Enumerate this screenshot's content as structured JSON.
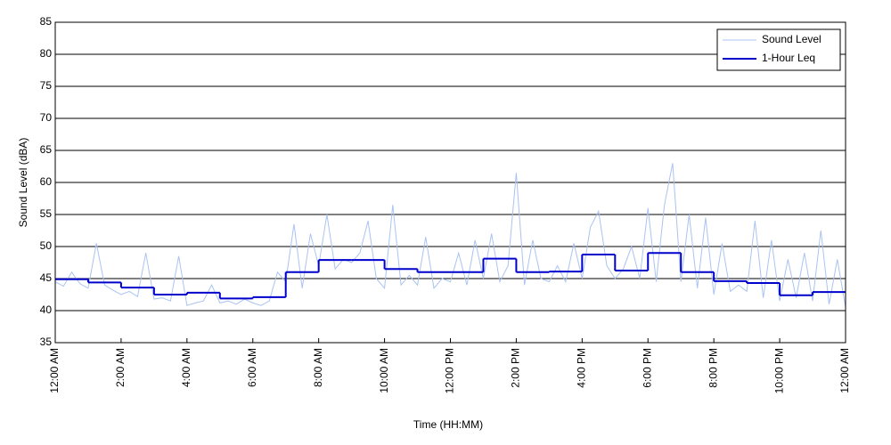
{
  "chart_data": {
    "type": "line",
    "xlabel": "Time (HH:MM)",
    "ylabel": "Sound Level (dBA)",
    "xlim": [
      0,
      24
    ],
    "ylim": [
      35,
      85
    ],
    "xticks": [
      {
        "value": 0,
        "label": "12:00 AM"
      },
      {
        "value": 2,
        "label": "2:00 AM"
      },
      {
        "value": 4,
        "label": "4:00 AM"
      },
      {
        "value": 6,
        "label": "6:00 AM"
      },
      {
        "value": 8,
        "label": "8:00 AM"
      },
      {
        "value": 10,
        "label": "10:00 AM"
      },
      {
        "value": 12,
        "label": "12:00 PM"
      },
      {
        "value": 14,
        "label": "2:00 PM"
      },
      {
        "value": 16,
        "label": "4:00 PM"
      },
      {
        "value": 18,
        "label": "6:00 PM"
      },
      {
        "value": 20,
        "label": "8:00 PM"
      },
      {
        "value": 22,
        "label": "10:00 PM"
      },
      {
        "value": 24,
        "label": "12:00 AM"
      }
    ],
    "yticks": [
      35,
      40,
      45,
      50,
      55,
      60,
      65,
      70,
      75,
      80,
      85
    ],
    "grid": true,
    "legend": "top-right",
    "series": [
      {
        "name": "Sound Level",
        "color": "#a9c3f2",
        "x": [
          0,
          0.25,
          0.5,
          0.75,
          1,
          1.25,
          1.5,
          1.75,
          2,
          2.25,
          2.5,
          2.75,
          3,
          3.25,
          3.5,
          3.75,
          4,
          4.25,
          4.5,
          4.75,
          5,
          5.25,
          5.5,
          5.75,
          6,
          6.25,
          6.5,
          6.75,
          7,
          7.25,
          7.5,
          7.75,
          8,
          8.25,
          8.5,
          8.75,
          9,
          9.25,
          9.5,
          9.75,
          10,
          10.25,
          10.5,
          10.75,
          11,
          11.25,
          11.5,
          11.75,
          12,
          12.25,
          12.5,
          12.75,
          13,
          13.25,
          13.5,
          13.75,
          14,
          14.25,
          14.5,
          14.75,
          15,
          15.25,
          15.5,
          15.75,
          16,
          16.25,
          16.5,
          16.75,
          17,
          17.25,
          17.5,
          17.75,
          18,
          18.25,
          18.5,
          18.75,
          19,
          19.25,
          19.5,
          19.75,
          20,
          20.25,
          20.5,
          20.75,
          21,
          21.25,
          21.5,
          21.75,
          22,
          22.25,
          22.5,
          22.75,
          23,
          23.25,
          23.5,
          23.75,
          24
        ],
        "values": [
          44.5,
          43.8,
          46,
          44.2,
          43.5,
          50.5,
          44,
          43.2,
          42.5,
          43,
          42.2,
          49,
          41.8,
          42,
          41.5,
          48.5,
          40.8,
          41.2,
          41.5,
          44,
          41.2,
          41.5,
          41,
          41.8,
          41.2,
          40.8,
          41.5,
          46,
          44.5,
          53.5,
          43.5,
          52,
          47,
          55,
          46.5,
          48,
          47.5,
          49,
          54,
          45,
          43.5,
          56.5,
          44,
          45.5,
          44,
          51.5,
          43.5,
          45,
          44.5,
          49,
          44,
          51,
          45,
          52,
          44.5,
          47,
          61.5,
          44,
          51,
          45,
          44.5,
          47,
          44.5,
          50.5,
          45,
          53,
          55.5,
          47,
          45,
          46.5,
          50,
          45,
          56,
          44.5,
          56.5,
          63,
          44.5,
          55,
          43.5,
          54.5,
          42.5,
          50.5,
          43,
          44,
          43,
          54,
          42,
          51,
          41.5,
          48,
          42,
          49,
          41.5,
          52.5,
          41,
          48,
          40.5
        ]
      },
      {
        "name": "1-Hour Leq",
        "color": "#0000cc",
        "step": "post",
        "x": [
          0,
          1,
          2,
          3,
          4,
          5,
          6,
          7,
          8,
          9,
          10,
          11,
          12,
          13,
          14,
          15,
          16,
          17,
          18,
          19,
          20,
          21,
          22,
          23
        ],
        "values": [
          44.9,
          44.4,
          43.6,
          42.5,
          42.8,
          41.9,
          42.1,
          46.0,
          47.9,
          47.9,
          46.5,
          46.0,
          46.0,
          48.1,
          46.0,
          46.1,
          48.75,
          46.25,
          49.0,
          46.0,
          44.6,
          44.3,
          42.4,
          42.9
        ]
      }
    ]
  }
}
